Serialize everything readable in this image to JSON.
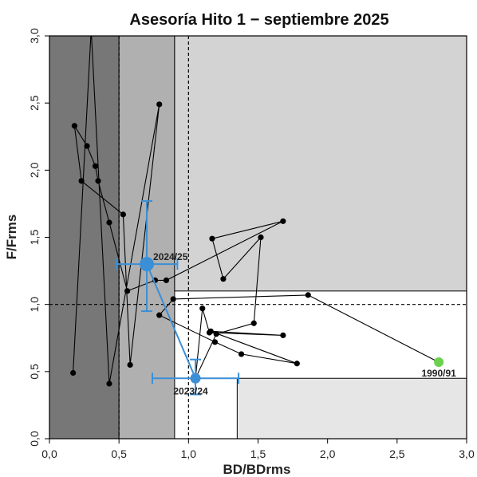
{
  "chart_data": {
    "type": "scatter",
    "title": "Asesoría Hito 1 − septiembre 2025",
    "xlabel": "BD/BDrms",
    "ylabel": "F/Frms",
    "xlim": [
      0,
      3
    ],
    "ylim": [
      0,
      3
    ],
    "x_ticks": [
      "0,0",
      "0,5",
      "1,0",
      "1,5",
      "2,0",
      "2,5",
      "3,0"
    ],
    "y_ticks": [
      "0,0",
      "0,5",
      "1,0",
      "1,5",
      "2,0",
      "2,5",
      "3,0"
    ],
    "grid": false,
    "zones": [
      {
        "x": [
          0,
          0.5
        ],
        "y": [
          0,
          3
        ],
        "color": "#777777"
      },
      {
        "x": [
          0.5,
          0.9
        ],
        "y": [
          0,
          3
        ],
        "color": "#b0b0b0"
      },
      {
        "x": [
          0.9,
          3
        ],
        "y": [
          1.1,
          3
        ],
        "color": "#d3d3d3"
      },
      {
        "x": [
          1.35,
          3
        ],
        "y": [
          0,
          0.45
        ],
        "color": "#e6e6e6"
      }
    ],
    "reference_lines": {
      "vertical": [
        0.5,
        1.0
      ],
      "horizontal": [
        1.0
      ]
    },
    "series": [
      {
        "color": "#000000",
        "points": [
          [
            2.8,
            0.57
          ],
          [
            1.86,
            1.07
          ],
          [
            0.89,
            1.04
          ],
          [
            0.79,
            0.92
          ],
          [
            1.19,
            0.72
          ],
          [
            1.38,
            0.63
          ],
          [
            1.78,
            0.56
          ],
          [
            1.16,
            0.8
          ],
          [
            1.68,
            0.77
          ],
          [
            1.15,
            0.79
          ],
          [
            1.1,
            0.97
          ],
          [
            1.05,
            0.45
          ],
          [
            1.2,
            0.78
          ],
          [
            1.47,
            0.86
          ],
          [
            1.52,
            1.5
          ],
          [
            1.25,
            1.19
          ],
          [
            1.17,
            1.49
          ],
          [
            1.68,
            1.62
          ],
          [
            0.84,
            1.18
          ],
          [
            0.76,
            1.18
          ],
          [
            0.56,
            1.1
          ],
          [
            0.43,
            1.61
          ],
          [
            0.35,
            1.92
          ],
          [
            0.33,
            2.03
          ],
          [
            0.27,
            2.18
          ],
          [
            0.18,
            2.33
          ],
          [
            0.23,
            1.92
          ],
          [
            0.53,
            1.67
          ],
          [
            0.58,
            0.55
          ],
          [
            0.79,
            2.49
          ],
          [
            0.43,
            0.41
          ],
          [
            0.3,
            3.05
          ],
          [
            0.17,
            0.49
          ]
        ]
      },
      {
        "color": "#3a8fd6",
        "points": [
          [
            1.05,
            0.45
          ],
          [
            0.7,
            1.3
          ]
        ],
        "xerr": [
          [
            0.74,
            1.36
          ],
          [
            0.48,
            0.92
          ]
        ],
        "yerr": [
          [
            0.33,
            0.59
          ],
          [
            0.95,
            1.77
          ]
        ],
        "labels": [
          "2023/24",
          "2024/25"
        ]
      }
    ],
    "annotations": [
      {
        "text": "1990/91",
        "x": 2.8,
        "y": 0.57,
        "color": "#6bd14e"
      },
      {
        "text": "2023/24",
        "x": 1.05,
        "y": 0.45,
        "color": "#3a8fd6"
      },
      {
        "text": "2024/25",
        "x": 0.7,
        "y": 1.3,
        "color": "#3a8fd6"
      }
    ]
  }
}
